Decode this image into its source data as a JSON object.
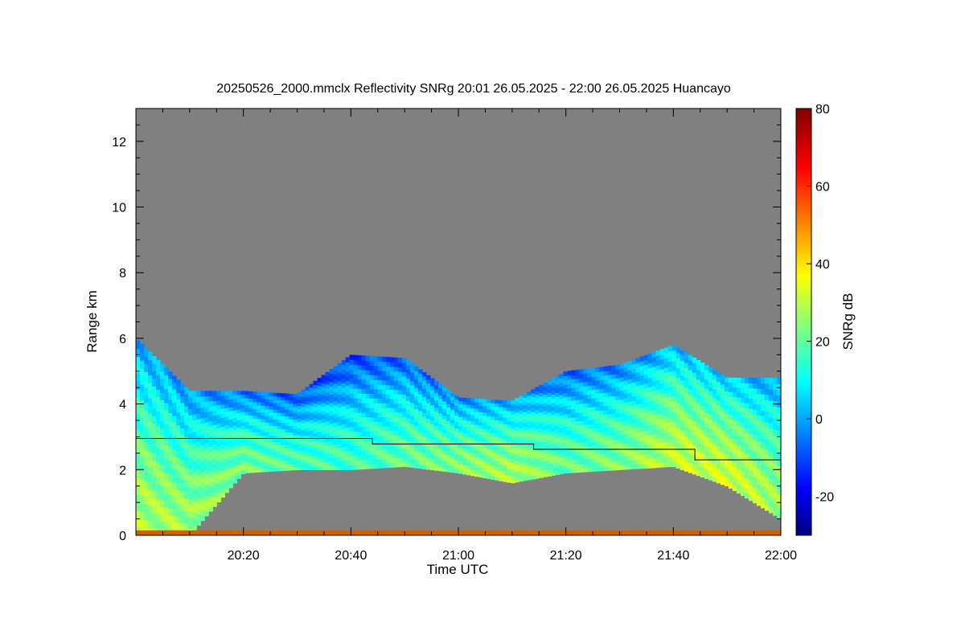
{
  "chart_data": {
    "type": "heatmap",
    "title": "20250526_2000.mmclx Reflectivity SNRg   20:01 26.05.2025 - 22:00 26.05.2025 Huancayo",
    "xlabel": "Time UTC",
    "ylabel": "Range km",
    "colorbar_label": "SNRg dB",
    "x_tick_labels": [
      "20:20",
      "20:40",
      "21:00",
      "21:20",
      "21:40",
      "22:00"
    ],
    "x_tick_minutes": [
      20,
      40,
      60,
      80,
      100,
      120
    ],
    "xlim_minutes": [
      0,
      120
    ],
    "y_ticks": [
      0,
      2,
      4,
      6,
      8,
      10,
      12
    ],
    "ylim_km": [
      0,
      13
    ],
    "colorbar_ticks": [
      -20,
      0,
      20,
      40,
      60,
      80
    ],
    "colorbar_range_db": [
      -30,
      80
    ],
    "colormap": "jet",
    "no_signal_color": "#808080",
    "cloud_layer": {
      "comment_free": true,
      "times_min": [
        0,
        10,
        20,
        30,
        40,
        50,
        60,
        70,
        80,
        90,
        100,
        110,
        120
      ],
      "top_km": [
        6.0,
        4.4,
        4.4,
        4.3,
        5.5,
        5.4,
        4.2,
        4.1,
        5.0,
        5.2,
        5.8,
        4.8,
        4.8
      ],
      "base_km": [
        0.0,
        0.0,
        1.9,
        2.0,
        2.0,
        2.1,
        1.9,
        1.6,
        1.9,
        2.0,
        2.1,
        1.5,
        0.5
      ],
      "core_db": [
        30,
        28,
        24,
        20,
        18,
        22,
        26,
        30,
        22,
        25,
        32,
        34,
        28
      ]
    },
    "reference_line": {
      "times_min": [
        0,
        44,
        44,
        74,
        74,
        104,
        104,
        120
      ],
      "range_km": [
        2.95,
        2.95,
        2.78,
        2.78,
        2.62,
        2.62,
        2.3,
        2.3
      ]
    }
  }
}
